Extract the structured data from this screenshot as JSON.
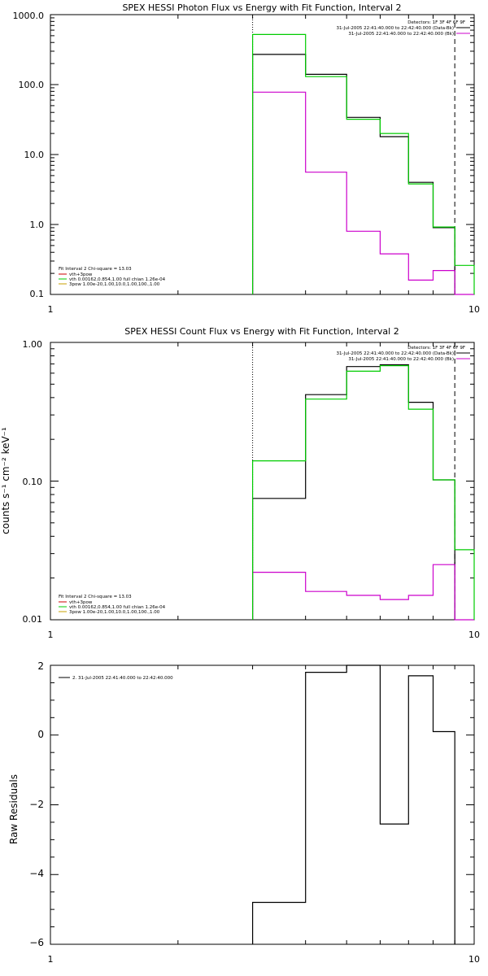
{
  "colors": {
    "data": "#000000",
    "bk": "#cc00cc",
    "fit": "#00cc00",
    "comp": "#cc0000",
    "apec": "#c8a000"
  },
  "chart_data": [
    {
      "type": "line",
      "title": "SPEX HESSI Photon Flux vs Energy with Fit Function, Interval 2",
      "xlabel": "",
      "ylabel": "",
      "x_scale": "log",
      "y_scale": "log",
      "xlim": [
        1,
        10
      ],
      "ylim": [
        0.1,
        1000
      ],
      "x_ticks": [
        "1",
        "10"
      ],
      "y_ticks": [
        "0.1",
        "1.0",
        "10.0",
        "100.0",
        "1000.0"
      ],
      "bin_edges": [
        3,
        4,
        5,
        6,
        7,
        8,
        9,
        10
      ],
      "series": [
        {
          "name": "31-Jul-2005 22:41:40.000 to 22:42:40.000 (Data-Bk)",
          "color": "#000000",
          "values": [
            270,
            140,
            34,
            18,
            4,
            0.9
          ]
        },
        {
          "name": "31-Jul-2005 22:41:40.000 to 22:42:40.000 (Bk)",
          "color": "#cc00cc",
          "values": [
            78,
            5.6,
            0.8,
            0.38,
            0.16,
            0.22,
            0
          ]
        },
        {
          "name": "vth+3pow",
          "color": "#00cc00",
          "values": [
            520,
            130,
            32,
            20,
            3.8,
            0.92,
            0.26
          ]
        }
      ],
      "vlines": [
        {
          "x": 3,
          "style": "dotted"
        },
        {
          "x": 9,
          "style": "dashed"
        }
      ],
      "legend_top": [
        "Detectors: 1F 3F 4F 6F 9F",
        "31-Jul-2005 22:41:40.000 to 22:42:40.000 (Data-Bk)",
        "31-Jul-2005 22:41:40.000 to 22:42:40.000 (Bk)"
      ],
      "fit_info": [
        {
          "text": "Fit Interval  2     Chi-square = 13.03",
          "color": "#000000",
          "swatch": false
        },
        {
          "text": "vth+3pow",
          "color": "#cc0000",
          "swatch": true
        },
        {
          "text": "vth 0.00162,0.854,1.00  full chian 1.26e-04",
          "color": "#00cc00",
          "swatch": true
        },
        {
          "text": "3pow 1.00e-20,1.00,10.0,1.00,100.,1.00",
          "color": "#c8a000",
          "swatch": true
        }
      ]
    },
    {
      "type": "line",
      "title": "SPEX HESSI Count Flux vs Energy with Fit Function, Interval 2",
      "xlabel": "",
      "ylabel": "counts s⁻¹ cm⁻² keV⁻¹",
      "x_scale": "log",
      "y_scale": "log",
      "xlim": [
        1,
        10
      ],
      "ylim": [
        0.01,
        1.0
      ],
      "x_ticks": [
        "1",
        "10"
      ],
      "y_ticks": [
        "0.01",
        "0.10",
        "1.00"
      ],
      "bin_edges": [
        3,
        4,
        5,
        6,
        7,
        8,
        9,
        10
      ],
      "series": [
        {
          "name": "31-Jul-2005 22:41:40.000 to 22:42:40.000 (Data-Bk)",
          "color": "#000000",
          "values": [
            0.075,
            0.42,
            0.67,
            0.69,
            0.37,
            0.102
          ]
        },
        {
          "name": "31-Jul-2005 22:41:40.000 to 22:42:40.000 (Bk)",
          "color": "#cc00cc",
          "values": [
            0.022,
            0.016,
            0.015,
            0.014,
            0.015,
            0.025,
            0
          ]
        },
        {
          "name": "vth+3pow",
          "color": "#00cc00",
          "values": [
            0.14,
            0.39,
            0.62,
            0.68,
            0.33,
            0.102,
            0.032
          ]
        }
      ],
      "vlines": [
        {
          "x": 3,
          "style": "dotted"
        },
        {
          "x": 9,
          "style": "dashed"
        }
      ],
      "legend_top": [
        "Detectors: 1F 3F 4F 6F 9F",
        "31-Jul-2005 22:41:40.000 to 22:42:40.000 (Data-Bk)",
        "31-Jul-2005 22:41:40.000 to 22:42:40.000 (Bk)"
      ],
      "fit_info": [
        {
          "text": "Fit Interval  2     Chi-square = 13.03",
          "color": "#000000",
          "swatch": false
        },
        {
          "text": "vth+3pow",
          "color": "#cc0000",
          "swatch": true
        },
        {
          "text": "vth 0.00162,0.854,1.00  full chian 1.26e-04",
          "color": "#00cc00",
          "swatch": true
        },
        {
          "text": "3pow 1.00e-20,1.00,10.0,1.00,100.,1.00",
          "color": "#c8a000",
          "swatch": true
        }
      ]
    },
    {
      "type": "line",
      "title": "",
      "xlabel": "",
      "ylabel": "Raw Residuals",
      "x_scale": "log",
      "y_scale": "linear",
      "xlim": [
        1,
        10
      ],
      "ylim": [
        -6,
        2
      ],
      "x_ticks": [
        "1",
        "10"
      ],
      "y_ticks": [
        "−6",
        "−4",
        "−2",
        "0",
        "2"
      ],
      "bin_edges": [
        3,
        4,
        5,
        6,
        7,
        8,
        9
      ],
      "series": [
        {
          "name": "2. 31-Jul-2005 22:41:40.000 to 22:42:40.000",
          "color": "#000000",
          "values": [
            -4.8,
            1.8,
            2.02,
            -2.55,
            1.7,
            0.1
          ]
        }
      ]
    }
  ]
}
